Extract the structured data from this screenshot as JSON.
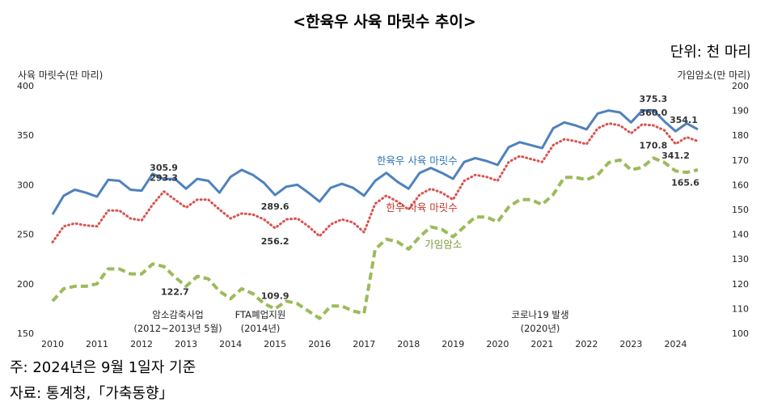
{
  "title": "<한육우 사육 마릿수 추이>",
  "unit": "단위: 천 마리",
  "footer": {
    "note": "주: 2024년은 9월 1일자 기준",
    "source": "자료: 통계청,「가축동향」"
  },
  "chart_data": {
    "type": "line",
    "y_left": {
      "label": "사육 마릿수(만 마리)",
      "range": [
        150,
        400
      ],
      "ticks": [
        150,
        200,
        250,
        300,
        350,
        400
      ]
    },
    "y_right": {
      "label": "가임암소(만 마리)",
      "range": [
        100,
        200
      ],
      "ticks": [
        100,
        110,
        120,
        130,
        140,
        150,
        160,
        170,
        180,
        190,
        200
      ]
    },
    "x_ticks": [
      "2010",
      "2011",
      "2012",
      "2013",
      "2014",
      "2015",
      "2016",
      "2017",
      "2018",
      "2019",
      "2020",
      "2021",
      "2022",
      "2023",
      "2024"
    ],
    "x_range": [
      2010,
      2024.9
    ],
    "grid": false,
    "series": [
      {
        "name": "한육우 사육 마릿수",
        "axis": "left",
        "color": "#4f81bd",
        "style": "solid",
        "x": [
          2010,
          2010.25,
          2010.5,
          2010.75,
          2011,
          2011.25,
          2011.5,
          2011.75,
          2012,
          2012.25,
          2012.5,
          2012.75,
          2013,
          2013.25,
          2013.5,
          2013.75,
          2014,
          2014.25,
          2014.5,
          2014.75,
          2015,
          2015.25,
          2015.5,
          2015.75,
          2016,
          2016.25,
          2016.5,
          2016.75,
          2017,
          2017.25,
          2017.5,
          2017.75,
          2018,
          2018.25,
          2018.5,
          2018.75,
          2019,
          2019.25,
          2019.5,
          2019.75,
          2020,
          2020.25,
          2020.5,
          2020.75,
          2021,
          2021.25,
          2021.5,
          2021.75,
          2022,
          2022.25,
          2022.5,
          2022.75,
          2023,
          2023.25,
          2023.5,
          2023.75,
          2024,
          2024.25,
          2024.5
        ],
        "values": [
          270,
          289,
          295,
          292,
          288,
          305,
          304,
          295,
          294,
          311,
          305.9,
          306,
          296,
          306,
          304,
          292,
          308,
          315,
          310,
          302,
          289.6,
          298,
          300,
          292,
          283,
          297,
          301,
          297,
          289,
          304,
          312,
          303,
          296,
          312,
          317,
          312,
          306,
          323,
          327,
          324,
          320,
          338,
          343,
          340,
          337,
          357,
          363,
          360,
          356,
          372,
          375,
          373,
          363,
          375,
          375.3,
          364,
          354.1,
          362,
          356
        ]
      },
      {
        "name": "한우 사육 마릿수",
        "axis": "left",
        "color": "#d9534f",
        "style": "dotted",
        "x": [
          2010,
          2010.25,
          2010.5,
          2010.75,
          2011,
          2011.25,
          2011.5,
          2011.75,
          2012,
          2012.25,
          2012.5,
          2012.75,
          2013,
          2013.25,
          2013.5,
          2013.75,
          2014,
          2014.25,
          2014.5,
          2014.75,
          2015,
          2015.25,
          2015.5,
          2015.75,
          2016,
          2016.25,
          2016.5,
          2016.75,
          2017,
          2017.25,
          2017.5,
          2017.75,
          2018,
          2018.25,
          2018.5,
          2018.75,
          2019,
          2019.25,
          2019.5,
          2019.75,
          2020,
          2020.25,
          2020.5,
          2020.75,
          2021,
          2021.25,
          2021.5,
          2021.75,
          2022,
          2022.25,
          2022.5,
          2022.75,
          2023,
          2023.25,
          2023.5,
          2023.75,
          2024,
          2024.25,
          2024.5
        ],
        "values": [
          242,
          258,
          261,
          259,
          258,
          274,
          274,
          266,
          264,
          280,
          293.3,
          285,
          277,
          285,
          285,
          275,
          266,
          271,
          270,
          265,
          256.2,
          265,
          266,
          258,
          248,
          260,
          265,
          262,
          252,
          281,
          289,
          283,
          275,
          290,
          296,
          292,
          285,
          304,
          310,
          308,
          304,
          323,
          329,
          326,
          323,
          340,
          346,
          344,
          341,
          357,
          362,
          360,
          352,
          361,
          360.0,
          355,
          341.2,
          348,
          344
        ]
      },
      {
        "name": "가임암소",
        "axis": "right",
        "color": "#9bbb59",
        "style": "dashed",
        "x": [
          2010,
          2010.25,
          2010.5,
          2010.75,
          2011,
          2011.25,
          2011.5,
          2011.75,
          2012,
          2012.25,
          2012.5,
          2012.75,
          2013,
          2013.25,
          2013.5,
          2013.75,
          2014,
          2014.25,
          2014.5,
          2014.75,
          2015,
          2015.25,
          2015.5,
          2015.75,
          2016,
          2016.25,
          2016.5,
          2016.75,
          2017,
          2017.25,
          2017.5,
          2017.75,
          2018,
          2018.25,
          2018.5,
          2018.75,
          2019,
          2019.25,
          2019.5,
          2019.75,
          2020,
          2020.25,
          2020.5,
          2020.75,
          2021,
          2021.25,
          2021.5,
          2021.75,
          2022,
          2022.25,
          2022.5,
          2022.75,
          2023,
          2023.25,
          2023.5,
          2023.75,
          2024,
          2024.25,
          2024.5
        ],
        "values": [
          113,
          118,
          119,
          119,
          120,
          126,
          126,
          124,
          124,
          128,
          127,
          122.7,
          119,
          123,
          122,
          117,
          114,
          118,
          116,
          112,
          109.9,
          113,
          112,
          109,
          106,
          111,
          111,
          109,
          108,
          134,
          138,
          137,
          134,
          139,
          143,
          142,
          139,
          143,
          147,
          147,
          145,
          151,
          154,
          154,
          152,
          156,
          163,
          163,
          162,
          164,
          169,
          170,
          166,
          167,
          170.8,
          169,
          165.6,
          165,
          166
        ]
      }
    ],
    "data_labels": [
      {
        "series": 0,
        "x": 2012.5,
        "text": "305.9"
      },
      {
        "series": 0,
        "x": 2015,
        "text": "289.6"
      },
      {
        "series": 0,
        "x": 2023.5,
        "text": "375.3"
      },
      {
        "series": 0,
        "x": 2024,
        "text": "354.1"
      },
      {
        "series": 1,
        "x": 2012.5,
        "text": "293.3"
      },
      {
        "series": 1,
        "x": 2015,
        "text": "256.2"
      },
      {
        "series": 1,
        "x": 2023.5,
        "text": "360.0"
      },
      {
        "series": 1,
        "x": 2024,
        "text": "341.2"
      },
      {
        "series": 2,
        "x": 2012.75,
        "text": "122.7"
      },
      {
        "series": 2,
        "x": 2015,
        "text": "109.9"
      },
      {
        "series": 2,
        "x": 2023.5,
        "text": "170.8"
      },
      {
        "series": 2,
        "x": 2024,
        "text": "165.6"
      }
    ],
    "annotations": [
      {
        "lines": [
          "암소감축사업",
          "(2012~2013년 5월)"
        ]
      },
      {
        "lines": [
          "FTA폐업지원",
          "(2014년)"
        ]
      },
      {
        "lines": [
          "코로나19 발생",
          "(2020년)"
        ]
      }
    ]
  }
}
